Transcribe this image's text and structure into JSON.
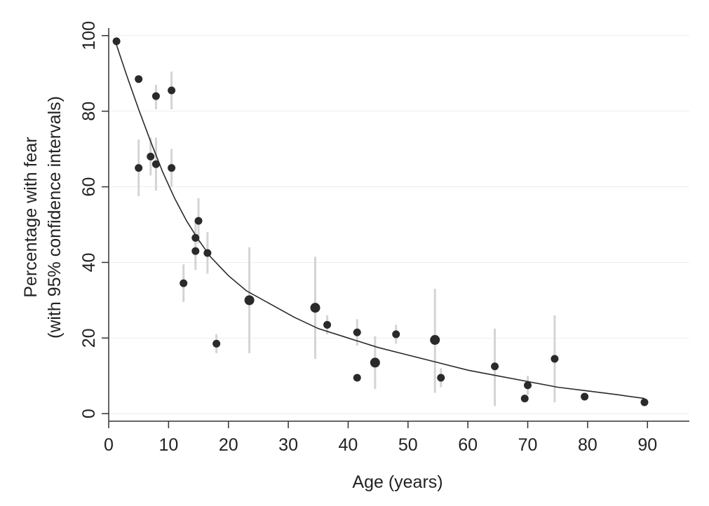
{
  "chart_data": {
    "type": "scatter",
    "title": "",
    "xlabel": "Age (years)",
    "ylabel_line1": "Percentage with fear",
    "ylabel_line2": "(with 95% confidence intervals)",
    "xlim": [
      0,
      97
    ],
    "ylim": [
      -2,
      102
    ],
    "x_ticks": [
      0,
      10,
      20,
      30,
      40,
      50,
      60,
      70,
      80,
      90
    ],
    "x_tick_labels": [
      "0",
      "10",
      "20",
      "30",
      "40",
      "50",
      "60",
      "70",
      "80",
      "90"
    ],
    "y_ticks": [
      0,
      20,
      40,
      60,
      80,
      100
    ],
    "y_tick_labels": [
      "0",
      "20",
      "40",
      "60",
      "80",
      "100"
    ],
    "grid": "horizontal",
    "legend": "none",
    "colors": {
      "points": "#2a2a2a",
      "ci_bars": "#d4d4d4",
      "fit_line": "#2a2a2a",
      "grid": "#eeeeee",
      "axis": "#333333"
    },
    "points": [
      {
        "x": 1.3,
        "y": 98.5,
        "lo": null,
        "hi": null,
        "size": "medium"
      },
      {
        "x": 5.0,
        "y": 88.5,
        "lo": null,
        "hi": null,
        "size": "medium"
      },
      {
        "x": 5.0,
        "y": 65.0,
        "lo": 57.5,
        "hi": 72.5,
        "size": "medium"
      },
      {
        "x": 7.0,
        "y": 68.0,
        "lo": 63.0,
        "hi": 73.0,
        "size": "medium"
      },
      {
        "x": 7.9,
        "y": 84.0,
        "lo": 80.5,
        "hi": 87.0,
        "size": "medium"
      },
      {
        "x": 7.9,
        "y": 66.0,
        "lo": 59.0,
        "hi": 73.0,
        "size": "medium"
      },
      {
        "x": 10.5,
        "y": 85.5,
        "lo": 80.5,
        "hi": 90.5,
        "size": "medium"
      },
      {
        "x": 10.5,
        "y": 65.0,
        "lo": 60.0,
        "hi": 70.0,
        "size": "medium"
      },
      {
        "x": 12.5,
        "y": 34.5,
        "lo": 29.5,
        "hi": 39.5,
        "size": "medium"
      },
      {
        "x": 14.5,
        "y": 46.5,
        "lo": 42.0,
        "hi": 51.0,
        "size": "medium"
      },
      {
        "x": 14.5,
        "y": 43.0,
        "lo": 38.0,
        "hi": 48.0,
        "size": "medium"
      },
      {
        "x": 15.0,
        "y": 51.0,
        "lo": 45.0,
        "hi": 57.0,
        "size": "medium"
      },
      {
        "x": 16.5,
        "y": 42.5,
        "lo": 37.0,
        "hi": 48.0,
        "size": "medium"
      },
      {
        "x": 18.0,
        "y": 18.5,
        "lo": 16.0,
        "hi": 21.0,
        "size": "medium"
      },
      {
        "x": 23.5,
        "y": 30.0,
        "lo": 16.0,
        "hi": 44.0,
        "size": "large"
      },
      {
        "x": 34.5,
        "y": 28.0,
        "lo": 14.5,
        "hi": 41.5,
        "size": "large"
      },
      {
        "x": 36.5,
        "y": 23.5,
        "lo": 21.0,
        "hi": 26.0,
        "size": "medium"
      },
      {
        "x": 41.5,
        "y": 21.5,
        "lo": 18.0,
        "hi": 25.0,
        "size": "medium"
      },
      {
        "x": 41.5,
        "y": 9.5,
        "lo": null,
        "hi": null,
        "size": "medium"
      },
      {
        "x": 44.5,
        "y": 13.5,
        "lo": 6.5,
        "hi": 20.5,
        "size": "large"
      },
      {
        "x": 48.0,
        "y": 21.0,
        "lo": 18.5,
        "hi": 23.5,
        "size": "medium"
      },
      {
        "x": 54.5,
        "y": 19.5,
        "lo": 5.5,
        "hi": 33.0,
        "size": "large"
      },
      {
        "x": 55.5,
        "y": 9.5,
        "lo": 7.0,
        "hi": 12.0,
        "size": "medium"
      },
      {
        "x": 64.5,
        "y": 12.5,
        "lo": 2.0,
        "hi": 22.5,
        "size": "medium"
      },
      {
        "x": 69.5,
        "y": 4.0,
        "lo": null,
        "hi": null,
        "size": "medium"
      },
      {
        "x": 70.0,
        "y": 7.5,
        "lo": 5.0,
        "hi": 10.0,
        "size": "medium"
      },
      {
        "x": 74.5,
        "y": 14.5,
        "lo": 3.0,
        "hi": 26.0,
        "size": "medium"
      },
      {
        "x": 79.5,
        "y": 4.5,
        "lo": null,
        "hi": null,
        "size": "medium"
      },
      {
        "x": 89.5,
        "y": 3.0,
        "lo": null,
        "hi": null,
        "size": "medium"
      }
    ],
    "fit_curve": [
      {
        "x": 1.0,
        "y": 99.0
      },
      {
        "x": 3.0,
        "y": 89.5
      },
      {
        "x": 5.0,
        "y": 80.5
      },
      {
        "x": 7.0,
        "y": 72.0
      },
      {
        "x": 9.0,
        "y": 64.0
      },
      {
        "x": 11.0,
        "y": 57.0
      },
      {
        "x": 13.0,
        "y": 51.0
      },
      {
        "x": 15.0,
        "y": 46.0
      },
      {
        "x": 17.0,
        "y": 41.5
      },
      {
        "x": 20.0,
        "y": 36.5
      },
      {
        "x": 23.0,
        "y": 32.5
      },
      {
        "x": 27.0,
        "y": 29.0
      },
      {
        "x": 31.0,
        "y": 25.5
      },
      {
        "x": 35.0,
        "y": 22.5
      },
      {
        "x": 40.0,
        "y": 20.0
      },
      {
        "x": 45.0,
        "y": 17.5
      },
      {
        "x": 50.0,
        "y": 15.5
      },
      {
        "x": 55.0,
        "y": 13.5
      },
      {
        "x": 60.0,
        "y": 11.5
      },
      {
        "x": 65.0,
        "y": 10.0
      },
      {
        "x": 70.0,
        "y": 8.5
      },
      {
        "x": 75.0,
        "y": 7.0
      },
      {
        "x": 80.0,
        "y": 6.0
      },
      {
        "x": 85.0,
        "y": 5.0
      },
      {
        "x": 89.5,
        "y": 4.0
      }
    ]
  }
}
